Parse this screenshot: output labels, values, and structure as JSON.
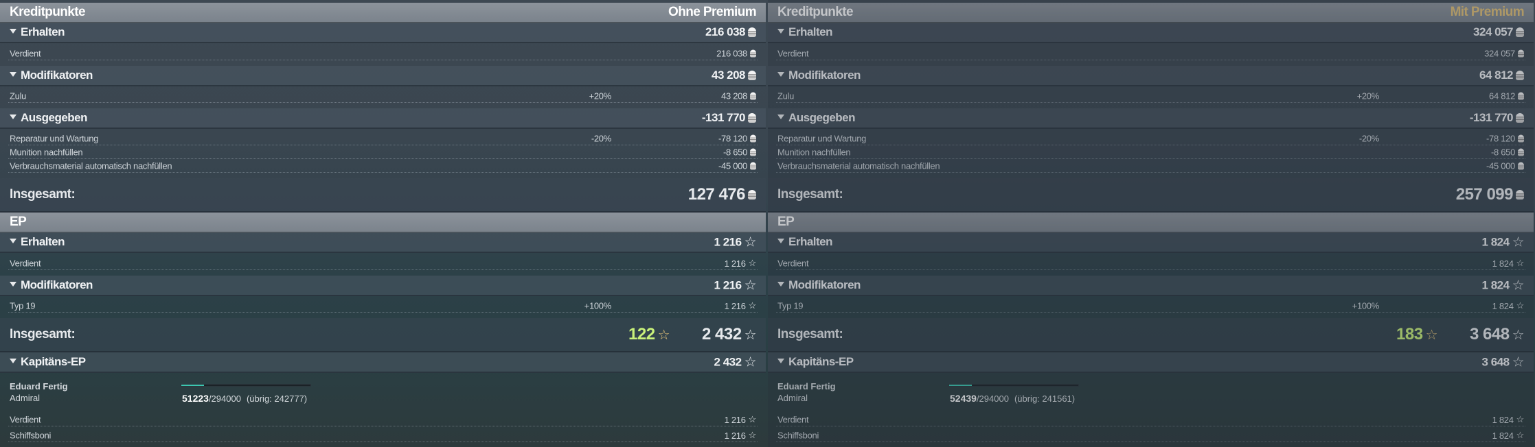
{
  "panels": [
    {
      "credits": {
        "title": "Kreditpunkte",
        "mode": "Ohne Premium",
        "received": {
          "label": "Erhalten",
          "value": "216 038",
          "items": [
            {
              "label": "Verdient",
              "value": "216 038"
            }
          ]
        },
        "modifiers": {
          "label": "Modifikatoren",
          "value": "43 208",
          "items": [
            {
              "label": "Zulu",
              "pct": "+20%",
              "value": "43 208"
            }
          ]
        },
        "spent": {
          "label": "Ausgegeben",
          "value": "-131 770",
          "items": [
            {
              "label": "Reparatur und Wartung",
              "pct": "-20%",
              "value": "-78 120"
            },
            {
              "label": "Munition nachfüllen",
              "value": "-8 650"
            },
            {
              "label": "Verbrauchsmaterial automatisch nachfüllen",
              "value": "-45 000"
            }
          ]
        },
        "total": {
          "label": "Insgesamt:",
          "value": "127 476"
        }
      },
      "xp": {
        "title": "EP",
        "received": {
          "label": "Erhalten",
          "value": "1 216",
          "items": [
            {
              "label": "Verdient",
              "value": "1 216"
            }
          ]
        },
        "modifiers": {
          "label": "Modifikatoren",
          "value": "1 216",
          "items": [
            {
              "label": "Typ 19",
              "pct": "+100%",
              "value": "1 216"
            }
          ]
        },
        "total": {
          "label": "Insgesamt:",
          "free": "122",
          "value": "2 432"
        }
      },
      "captain": {
        "label": "Kapitäns-EP",
        "value": "2 432",
        "name": "Eduard Fertig",
        "rank": "Admiral",
        "current": "51223",
        "max": "/294000",
        "remaining": "(übrig: 242777)",
        "progress": 0.174,
        "items": [
          {
            "label": "Verdient",
            "value": "1 216"
          },
          {
            "label": "Schiffsboni",
            "value": "1 216"
          }
        ]
      }
    },
    {
      "credits": {
        "title": "Kreditpunkte",
        "mode": "Mit Premium",
        "received": {
          "label": "Erhalten",
          "value": "324 057",
          "items": [
            {
              "label": "Verdient",
              "value": "324 057"
            }
          ]
        },
        "modifiers": {
          "label": "Modifikatoren",
          "value": "64 812",
          "items": [
            {
              "label": "Zulu",
              "pct": "+20%",
              "value": "64 812"
            }
          ]
        },
        "spent": {
          "label": "Ausgegeben",
          "value": "-131 770",
          "items": [
            {
              "label": "Reparatur und Wartung",
              "pct": "-20%",
              "value": "-78 120"
            },
            {
              "label": "Munition nachfüllen",
              "value": "-8 650"
            },
            {
              "label": "Verbrauchsmaterial automatisch nachfüllen",
              "value": "-45 000"
            }
          ]
        },
        "total": {
          "label": "Insgesamt:",
          "value": "257 099"
        }
      },
      "xp": {
        "title": "EP",
        "received": {
          "label": "Erhalten",
          "value": "1 824",
          "items": [
            {
              "label": "Verdient",
              "value": "1 824"
            }
          ]
        },
        "modifiers": {
          "label": "Modifikatoren",
          "value": "1 824",
          "items": [
            {
              "label": "Typ 19",
              "pct": "+100%",
              "value": "1 824"
            }
          ]
        },
        "total": {
          "label": "Insgesamt:",
          "free": "183",
          "value": "3 648"
        }
      },
      "captain": {
        "label": "Kapitäns-EP",
        "value": "3 648",
        "name": "Eduard Fertig",
        "rank": "Admiral",
        "current": "52439",
        "max": "/294000",
        "remaining": "(übrig: 241561)",
        "progress": 0.178,
        "items": [
          {
            "label": "Verdient",
            "value": "1 824"
          },
          {
            "label": "Schiffsboni",
            "value": "1 824"
          }
        ]
      }
    }
  ],
  "colors": {
    "progress": "#3cc6b0",
    "free_xp": "#c8f07a",
    "premium": "#e2c178"
  },
  "icons": {
    "credits": "credits-coin-icon",
    "xp": "star-icon",
    "expand": "triangle-down-icon"
  }
}
